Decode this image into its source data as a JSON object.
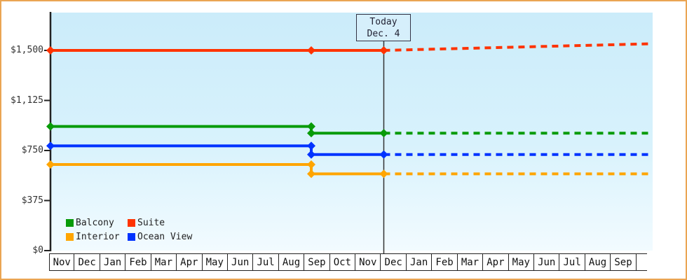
{
  "window": {
    "border_color": "#eaa553",
    "background": "#ffffff"
  },
  "chart_data": {
    "type": "line",
    "description": "Cabin price history and forecast by cabin category",
    "grid": false,
    "legend_position": "bottom-left",
    "y_axis": {
      "ticks": [
        {
          "label": "$0",
          "value": 0
        },
        {
          "label": "$375",
          "value": 375
        },
        {
          "label": "$750",
          "value": 750
        },
        {
          "label": "$1,125",
          "value": 1125
        },
        {
          "label": "$1,500",
          "value": 1500
        }
      ],
      "range": [
        0,
        1650
      ]
    },
    "x_axis": {
      "month_labels": [
        "Nov",
        "Dec",
        "Jan",
        "Feb",
        "Mar",
        "Apr",
        "May",
        "Jun",
        "Jul",
        "Aug",
        "Sep",
        "Oct",
        "Nov",
        "Dec",
        "Jan",
        "Feb",
        "Mar",
        "Apr",
        "May",
        "Jun",
        "Jul",
        "Aug",
        "Sep"
      ],
      "end_index": 23.58
    },
    "today": {
      "line1": "Today",
      "line2": "Dec. 4",
      "month_index": 13.05
    },
    "change_month_index": 10.21,
    "series": [
      {
        "name": "Balcony",
        "color": "#089b08",
        "past": [
          [
            0,
            930
          ],
          [
            10.21,
            930
          ],
          [
            10.21,
            880
          ],
          [
            13.05,
            880
          ]
        ],
        "forecast": [
          [
            13.05,
            880
          ],
          [
            23.58,
            880
          ]
        ],
        "markers": [
          [
            0,
            930
          ],
          [
            10.21,
            930
          ],
          [
            10.21,
            880
          ],
          [
            13.05,
            880
          ]
        ]
      },
      {
        "name": "Suite",
        "color": "#ff3300",
        "past": [
          [
            0,
            1500
          ],
          [
            10.21,
            1500
          ],
          [
            13.05,
            1500
          ]
        ],
        "forecast": [
          [
            13.05,
            1500
          ],
          [
            23.58,
            1550
          ]
        ],
        "markers": [
          [
            0,
            1500
          ],
          [
            10.21,
            1500
          ],
          [
            13.05,
            1500
          ]
        ]
      },
      {
        "name": "Interior",
        "color": "#ffa500",
        "past": [
          [
            0,
            645
          ],
          [
            10.21,
            645
          ],
          [
            10.21,
            575
          ],
          [
            13.05,
            575
          ]
        ],
        "forecast": [
          [
            13.05,
            575
          ],
          [
            23.58,
            575
          ]
        ],
        "markers": [
          [
            0,
            645
          ],
          [
            10.21,
            645
          ],
          [
            10.21,
            575
          ],
          [
            13.05,
            575
          ]
        ]
      },
      {
        "name": "Ocean View",
        "color": "#0033ff",
        "past": [
          [
            0,
            785
          ],
          [
            10.21,
            785
          ],
          [
            10.21,
            720
          ],
          [
            13.05,
            720
          ]
        ],
        "forecast": [
          [
            13.05,
            720
          ],
          [
            23.58,
            720
          ]
        ],
        "markers": [
          [
            0,
            785
          ],
          [
            10.21,
            785
          ],
          [
            10.21,
            720
          ],
          [
            13.05,
            720
          ]
        ]
      }
    ],
    "legend": {
      "order": [
        "Balcony",
        "Suite",
        "Interior",
        "Ocean View"
      ]
    }
  }
}
